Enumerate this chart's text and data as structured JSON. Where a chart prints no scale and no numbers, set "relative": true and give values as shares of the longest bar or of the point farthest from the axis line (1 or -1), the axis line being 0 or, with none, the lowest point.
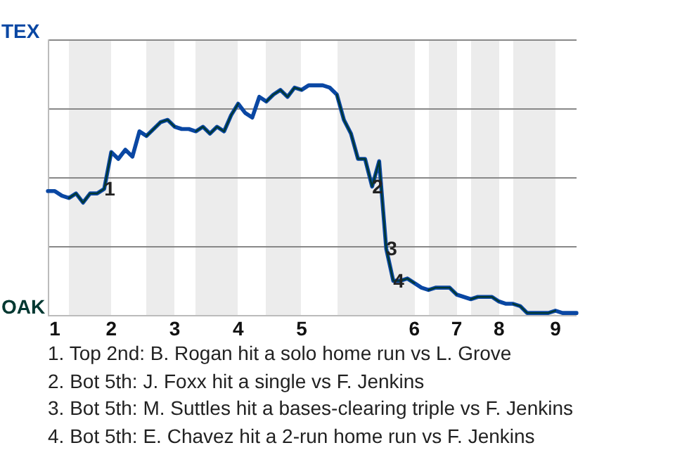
{
  "chart_data": {
    "type": "line",
    "relative": true,
    "categories": [
      null,
      "1",
      null,
      null,
      null,
      null,
      null,
      null,
      null,
      "2",
      null,
      null,
      null,
      null,
      null,
      null,
      null,
      null,
      "3",
      null,
      null,
      null,
      null,
      null,
      null,
      null,
      null,
      "4",
      null,
      null,
      null,
      null,
      null,
      null,
      null,
      null,
      "5",
      null,
      null,
      null,
      null,
      null,
      null,
      null,
      null,
      null,
      null,
      null,
      null,
      null,
      null,
      null,
      "6",
      null,
      null,
      null,
      null,
      null,
      "7",
      null,
      null,
      null,
      null,
      null,
      "8",
      null,
      null,
      null,
      null,
      null,
      null,
      null,
      "9",
      null,
      null,
      null
    ],
    "series": [
      {
        "color": "#0a47a3",
        "values": [
          0.54,
          0.54,
          0.52,
          0.51,
          0.53,
          0.49,
          0.53,
          0.53,
          0.55,
          0.71,
          0.68,
          0.72,
          0.69,
          0.8,
          0.78,
          0.81,
          0.84,
          0.85,
          0.82,
          0.81,
          0.81,
          0.8,
          0.82,
          0.79,
          0.82,
          0.8,
          0.87,
          0.92,
          0.88,
          0.86,
          0.95,
          0.93,
          0.96,
          0.98,
          0.95,
          0.99,
          0.98,
          1,
          1,
          1,
          0.99,
          0.96,
          0.85,
          0.79,
          0.68,
          0.68,
          0.56,
          0.67,
          0.29,
          0.15,
          0.15,
          0.16,
          0.14,
          0.12,
          0.11,
          0.12,
          0.12,
          0.12,
          0.09,
          0.08,
          0.07,
          0.08,
          0.08,
          0.08,
          0.06,
          0.05,
          0.05,
          0.04,
          0.01,
          0.01,
          0.01,
          0.01,
          0.02,
          0.01,
          0.01,
          0.01
        ]
      },
      {
        "color": "#003831",
        "values": [
          null,
          null,
          null,
          0.51,
          0.53,
          0.49,
          0.53,
          0.53,
          0.55,
          0.71,
          null,
          null,
          null,
          null,
          0.78,
          0.81,
          0.84,
          0.85,
          0.82,
          null,
          null,
          0.8,
          0.82,
          0.79,
          0.82,
          0.8,
          0.87,
          0.92,
          null,
          null,
          null,
          0.93,
          0.96,
          0.98,
          0.95,
          0.99,
          0.98,
          null,
          null,
          null,
          null,
          0.96,
          0.85,
          0.79,
          0.68,
          0.68,
          0.56,
          0.67,
          0.29,
          0.15,
          0.15,
          0.16,
          0.14,
          null,
          0.11,
          0.12,
          0.12,
          0.12,
          0.09,
          null,
          0.07,
          0.08,
          0.08,
          0.08,
          0.06,
          null,
          0.05,
          0.04,
          0.01,
          0.01,
          0.01,
          0.01,
          0.02,
          null,
          null,
          null
        ]
      }
    ],
    "grid": "y",
    "annotations": [
      "TEX",
      "OAK",
      {
        "text": "1",
        "y": 0.55
      },
      {
        "text": "2",
        "y": 0.56
      },
      {
        "text": "3",
        "y": 0.29
      },
      {
        "text": "4",
        "y": 0.15
      },
      "1. Top 2nd: B. Rogan hit a solo home run vs L. Grove",
      "2. Bot 5th: J. Foxx hit a single vs F. Jenkins",
      "3. Bot 5th: M. Suttles hit a bases-clearing triple vs F. Jenkins",
      "4. Bot 5th: E. Chavez hit a 2-run home run vs F. Jenkins"
    ]
  }
}
